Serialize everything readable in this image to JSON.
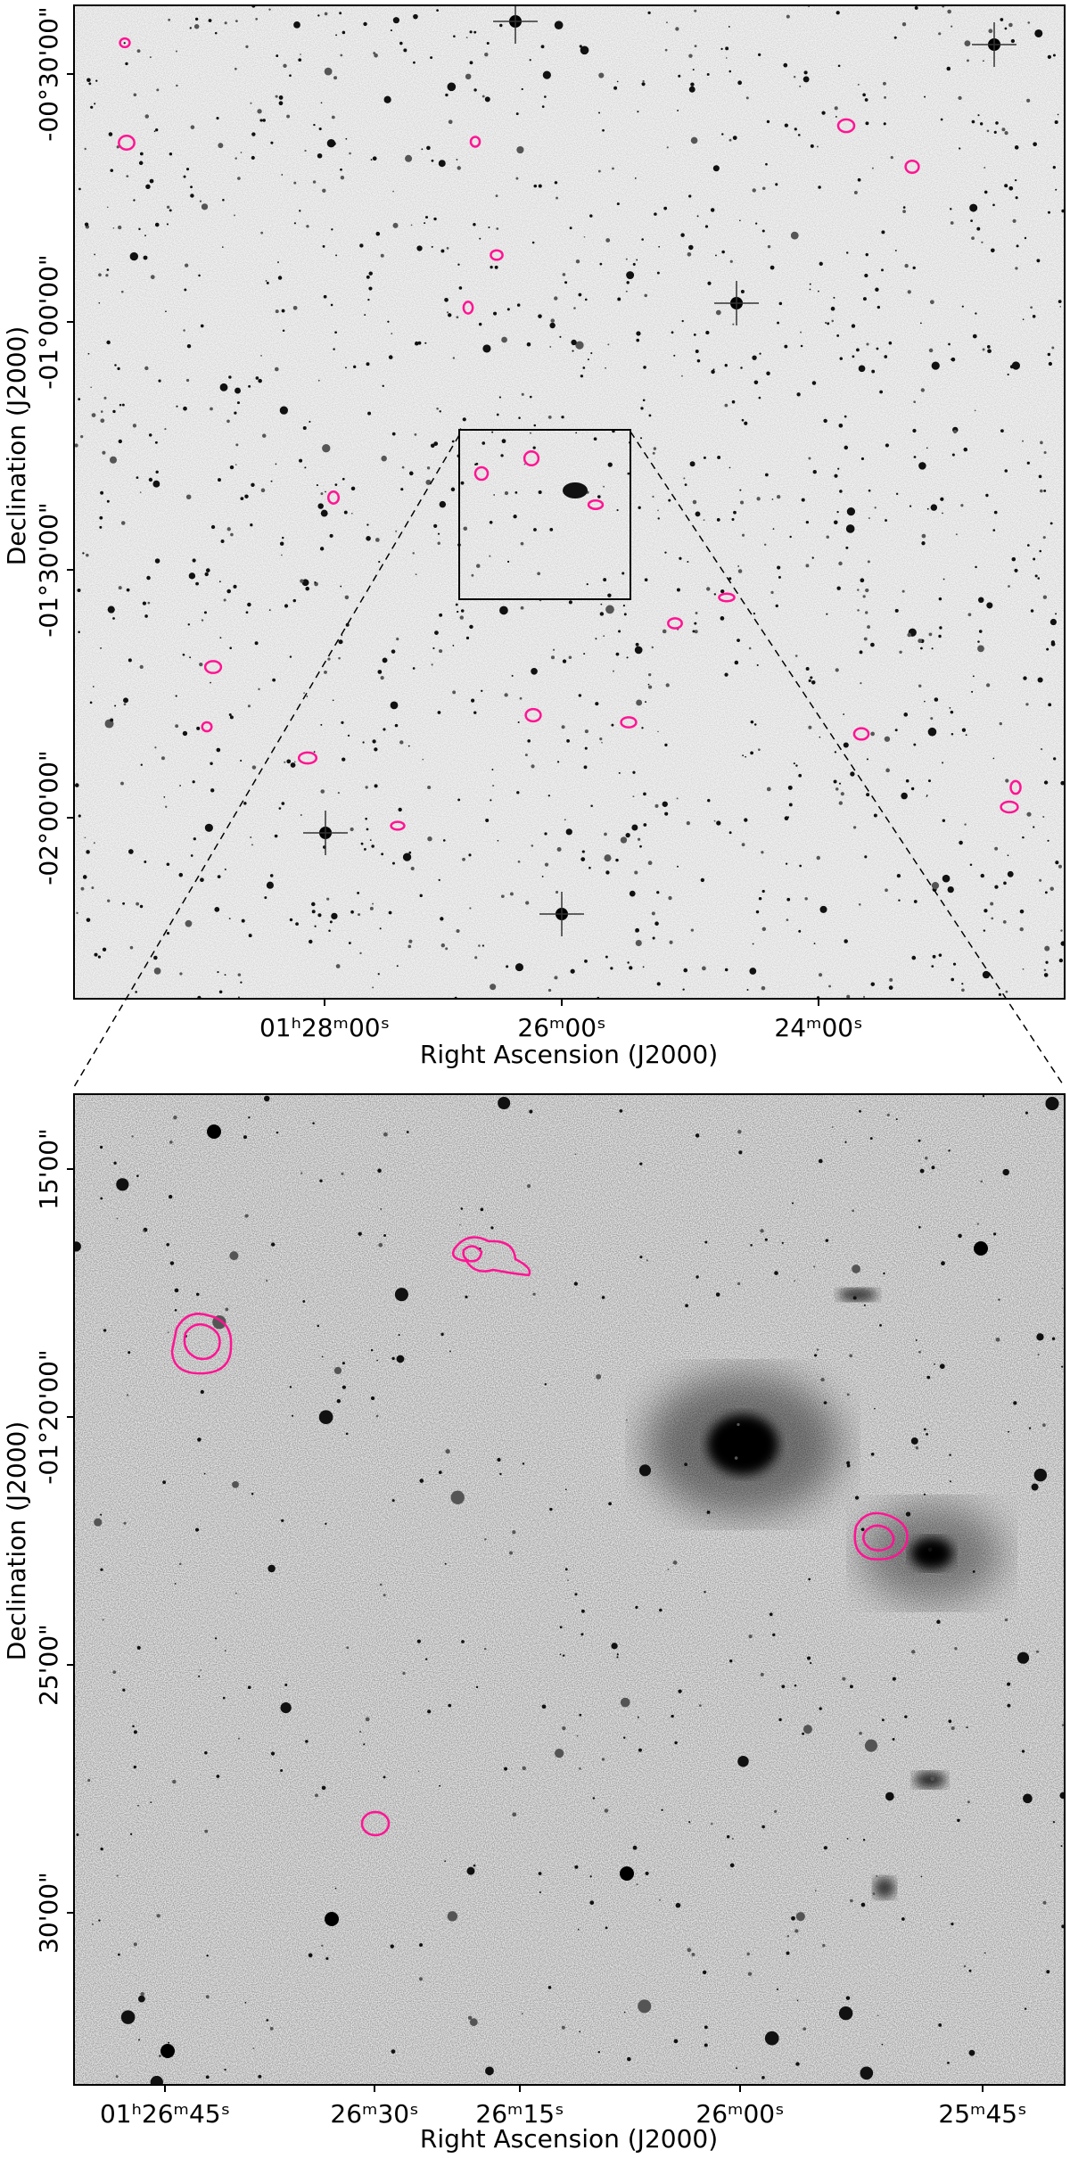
{
  "top_panel": {
    "x_label": "Right Ascension (J2000)",
    "y_label": "Declination (J2000)",
    "x_ticks": [
      "01ʰ28ᵐ00ˢ",
      "26ᵐ00ˢ",
      "24ᵐ00ˢ"
    ],
    "y_ticks": [
      "-00°30'00\"",
      "-01°00'00\"",
      "-01°30'00\"",
      "-02°00'00\""
    ]
  },
  "bottom_panel": {
    "x_label": "Right Ascension (J2000)",
    "y_label": "Declination (J2000)",
    "x_ticks": [
      "01ʰ26ᵐ45ˢ",
      "26ᵐ30ˢ",
      "26ᵐ15ˢ",
      "26ᵐ00ˢ",
      "25ᵐ45ˢ"
    ],
    "y_ticks": [
      "15'00\"",
      "-01°20'00\"",
      "25'00\"",
      "30'00\""
    ]
  }
}
